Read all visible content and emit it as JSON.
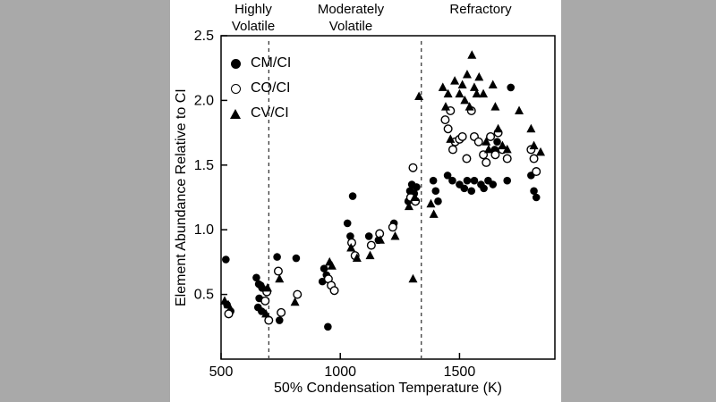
{
  "frame": {
    "background_color": "#a9a9a9",
    "panel_color": "#ffffff",
    "ink_color": "#000000"
  },
  "chart_data": {
    "type": "scatter",
    "title": "",
    "xlabel": "50% Condensation Temperature (K)",
    "ylabel": "Element Abundance Relative to CI",
    "xlim": [
      500,
      1900
    ],
    "ylim": [
      0,
      2.5
    ],
    "x_ticks": [
      500,
      1000,
      1500
    ],
    "y_ticks": [
      0.5,
      1.0,
      1.5,
      2.0,
      2.5
    ],
    "grid": false,
    "legend_position": "top-left",
    "dashed_lines_x": [
      700,
      1340
    ],
    "region_labels": [
      "Highly\nVolatile",
      "Moderately\nVolatile",
      "Refractory"
    ],
    "series": [
      {
        "name": "CM/CI",
        "marker": "filled-circle",
        "color": "#000000",
        "points": [
          [
            520,
            0.77
          ],
          [
            525,
            0.42
          ],
          [
            540,
            0.37
          ],
          [
            648,
            0.63
          ],
          [
            658,
            0.58
          ],
          [
            666,
            0.57
          ],
          [
            672,
            0.55
          ],
          [
            660,
            0.47
          ],
          [
            655,
            0.4
          ],
          [
            670,
            0.37
          ],
          [
            735,
            0.79
          ],
          [
            745,
            0.3
          ],
          [
            815,
            0.78
          ],
          [
            925,
            0.6
          ],
          [
            932,
            0.7
          ],
          [
            942,
            0.65
          ],
          [
            948,
            0.25
          ],
          [
            1030,
            1.05
          ],
          [
            1042,
            0.95
          ],
          [
            1052,
            1.26
          ],
          [
            1120,
            0.95
          ],
          [
            1160,
            0.92
          ],
          [
            1225,
            1.05
          ],
          [
            1285,
            1.22
          ],
          [
            1292,
            1.3
          ],
          [
            1300,
            1.35
          ],
          [
            1310,
            1.28
          ],
          [
            1320,
            1.33
          ],
          [
            1390,
            1.38
          ],
          [
            1400,
            1.3
          ],
          [
            1410,
            1.22
          ],
          [
            1450,
            1.42
          ],
          [
            1470,
            1.38
          ],
          [
            1500,
            1.35
          ],
          [
            1520,
            1.32
          ],
          [
            1532,
            1.38
          ],
          [
            1550,
            1.3
          ],
          [
            1562,
            1.38
          ],
          [
            1590,
            1.35
          ],
          [
            1602,
            1.32
          ],
          [
            1620,
            1.38
          ],
          [
            1640,
            1.35
          ],
          [
            1648,
            1.62
          ],
          [
            1658,
            1.68
          ],
          [
            1700,
            1.38
          ],
          [
            1715,
            2.1
          ],
          [
            1800,
            1.42
          ],
          [
            1812,
            1.3
          ],
          [
            1822,
            1.25
          ]
        ]
      },
      {
        "name": "CO/CI",
        "marker": "open-circle",
        "color": "#000000",
        "points": [
          [
            532,
            0.35
          ],
          [
            685,
            0.45
          ],
          [
            692,
            0.52
          ],
          [
            700,
            0.3
          ],
          [
            740,
            0.68
          ],
          [
            752,
            0.36
          ],
          [
            820,
            0.5
          ],
          [
            950,
            0.62
          ],
          [
            962,
            0.57
          ],
          [
            975,
            0.53
          ],
          [
            1048,
            0.9
          ],
          [
            1062,
            0.8
          ],
          [
            1130,
            0.88
          ],
          [
            1165,
            0.97
          ],
          [
            1220,
            1.02
          ],
          [
            1295,
            1.25
          ],
          [
            1305,
            1.48
          ],
          [
            1315,
            1.22
          ],
          [
            1440,
            1.85
          ],
          [
            1452,
            1.78
          ],
          [
            1462,
            1.92
          ],
          [
            1472,
            1.62
          ],
          [
            1482,
            1.68
          ],
          [
            1500,
            1.7
          ],
          [
            1512,
            1.72
          ],
          [
            1530,
            1.55
          ],
          [
            1550,
            1.92
          ],
          [
            1562,
            1.72
          ],
          [
            1580,
            1.68
          ],
          [
            1600,
            1.58
          ],
          [
            1612,
            1.52
          ],
          [
            1630,
            1.72
          ],
          [
            1650,
            1.58
          ],
          [
            1662,
            1.75
          ],
          [
            1680,
            1.62
          ],
          [
            1700,
            1.55
          ],
          [
            1800,
            1.62
          ],
          [
            1812,
            1.55
          ],
          [
            1822,
            1.45
          ]
        ]
      },
      {
        "name": "CV/CI",
        "marker": "filled-triangle",
        "color": "#000000",
        "points": [
          [
            515,
            0.45
          ],
          [
            530,
            0.42
          ],
          [
            688,
            0.35
          ],
          [
            695,
            0.55
          ],
          [
            745,
            0.62
          ],
          [
            810,
            0.44
          ],
          [
            955,
            0.75
          ],
          [
            965,
            0.72
          ],
          [
            1045,
            0.86
          ],
          [
            1070,
            0.78
          ],
          [
            1125,
            0.8
          ],
          [
            1168,
            0.92
          ],
          [
            1230,
            0.95
          ],
          [
            1288,
            1.18
          ],
          [
            1300,
            1.3
          ],
          [
            1312,
            1.25
          ],
          [
            1305,
            0.62
          ],
          [
            1330,
            2.03
          ],
          [
            1380,
            1.2
          ],
          [
            1392,
            1.12
          ],
          [
            1430,
            2.1
          ],
          [
            1442,
            1.95
          ],
          [
            1452,
            2.05
          ],
          [
            1462,
            1.7
          ],
          [
            1480,
            2.15
          ],
          [
            1500,
            2.05
          ],
          [
            1512,
            2.12
          ],
          [
            1522,
            2.0
          ],
          [
            1532,
            2.2
          ],
          [
            1542,
            1.95
          ],
          [
            1552,
            2.35
          ],
          [
            1562,
            2.1
          ],
          [
            1572,
            2.05
          ],
          [
            1582,
            2.18
          ],
          [
            1600,
            2.05
          ],
          [
            1612,
            1.68
          ],
          [
            1622,
            1.62
          ],
          [
            1640,
            2.12
          ],
          [
            1650,
            1.95
          ],
          [
            1662,
            1.78
          ],
          [
            1680,
            1.65
          ],
          [
            1700,
            1.62
          ],
          [
            1750,
            1.92
          ],
          [
            1800,
            1.78
          ],
          [
            1812,
            1.65
          ],
          [
            1840,
            1.6
          ]
        ]
      }
    ]
  }
}
